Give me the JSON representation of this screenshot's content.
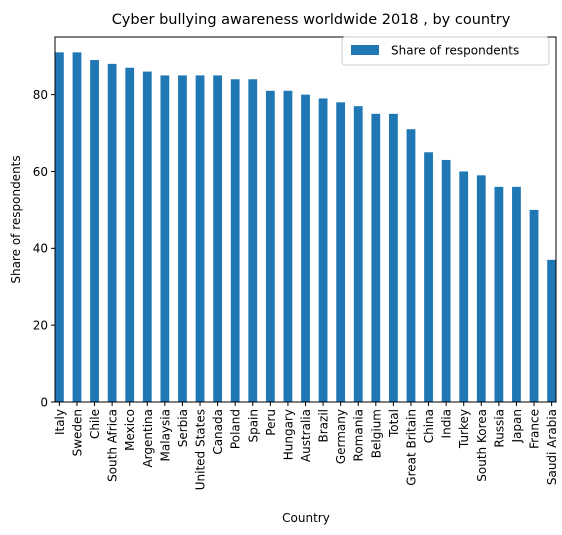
{
  "chart_data": {
    "type": "bar",
    "title": "Cyber bullying awareness worldwide 2018 , by country",
    "xlabel": "Country",
    "ylabel": "Share of respondents",
    "ylim": [
      0,
      95
    ],
    "yticks": [
      0,
      20,
      40,
      60,
      80
    ],
    "grid": false,
    "legend_position": "top-right",
    "bar_color": "#1f77b4",
    "categories": [
      "Italy",
      "Sweden",
      "Chile",
      "South Africa",
      "Mexico",
      "Argentina",
      "Malaysia",
      "Serbia",
      "United States",
      "Canada",
      "Poland",
      "Spain",
      "Peru",
      "Hungary",
      "Australia",
      "Brazil",
      "Germany",
      "Romania",
      "Belgium",
      "Total",
      "Great Britain",
      "China",
      "India",
      "Turkey",
      "South Korea",
      "Russia",
      "Japan",
      "France",
      "Saudi Arabia"
    ],
    "series": [
      {
        "name": "Share of respondents",
        "values": [
          91,
          91,
          89,
          88,
          87,
          86,
          85,
          85,
          85,
          85,
          84,
          84,
          81,
          81,
          80,
          79,
          78,
          77,
          75,
          75,
          71,
          65,
          63,
          60,
          59,
          56,
          56,
          50,
          37
        ]
      }
    ]
  }
}
